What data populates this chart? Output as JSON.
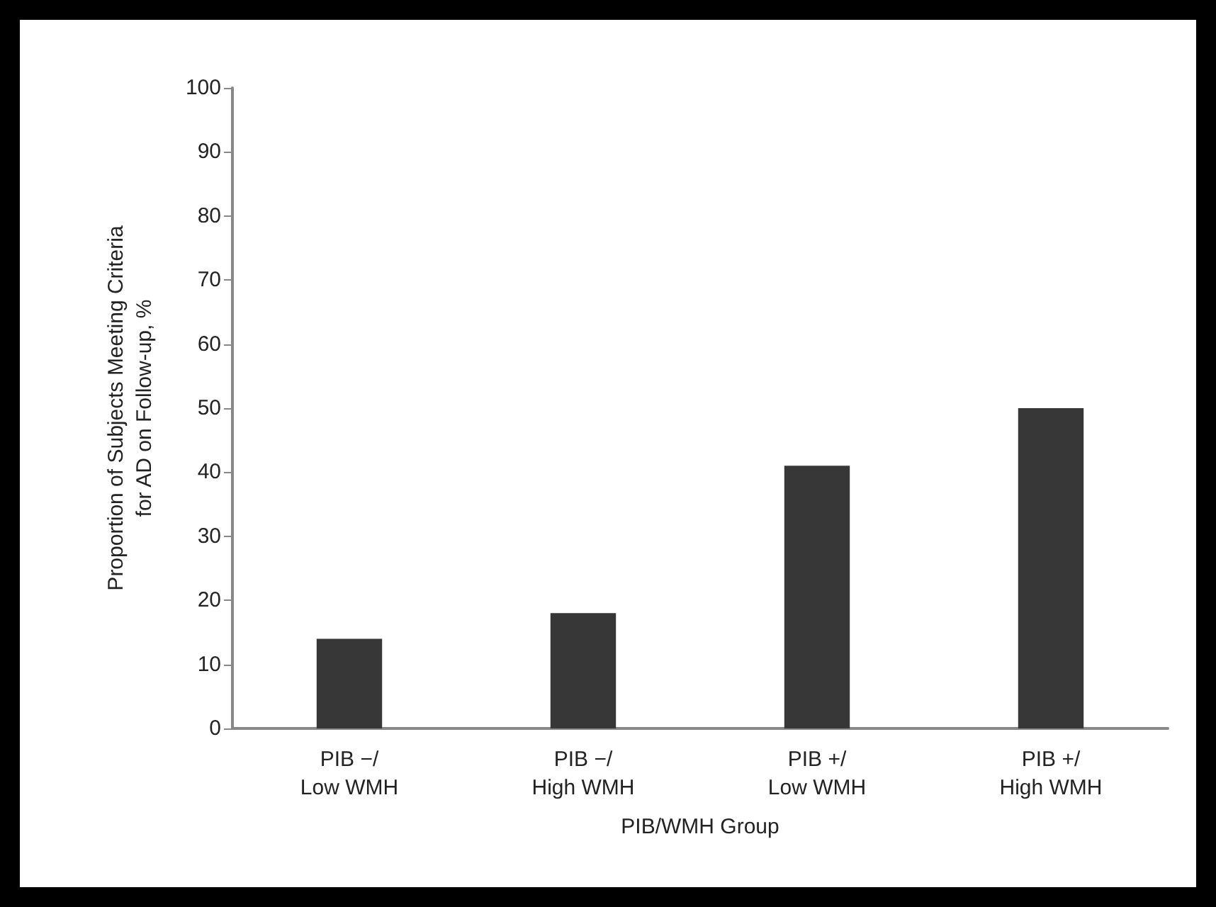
{
  "chart_data": {
    "type": "bar",
    "xlabel": "PIB/WMH Group",
    "ylabel": "Proportion of Subjects Meeting Criteria\nfor AD on Follow-up, %",
    "categories": [
      "PIB −/\nLow WMH",
      "PIB −/\nHigh WMH",
      "PIB +/\nLow WMH",
      "PIB +/\nHigh WMH"
    ],
    "values": [
      14,
      18,
      41,
      50
    ],
    "color": "#373737",
    "ylim": [
      0,
      100
    ],
    "yticks": [
      0,
      10,
      20,
      30,
      40,
      50,
      60,
      70,
      80,
      90,
      100
    ],
    "grid": false
  }
}
